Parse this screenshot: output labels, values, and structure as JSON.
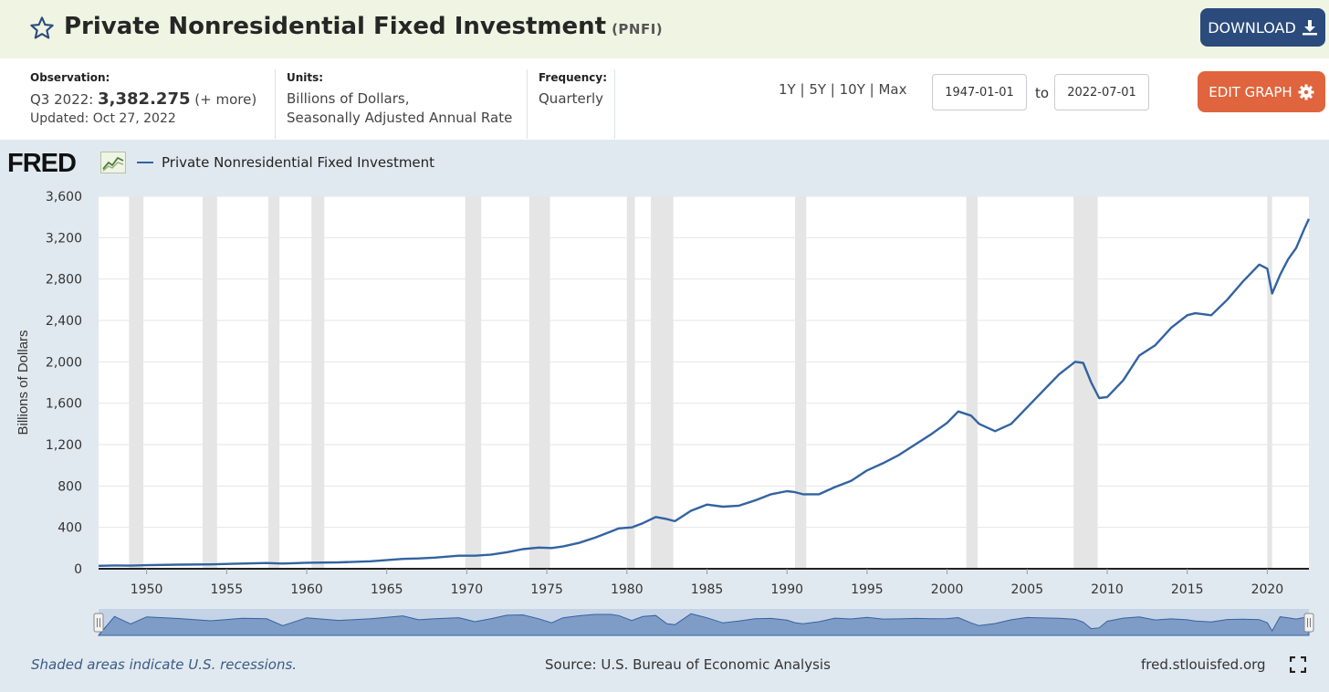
{
  "header": {
    "title": "Private Nonresidential Fixed Investment",
    "series_id": "(PNFI)",
    "download_label": "DOWNLOAD"
  },
  "info": {
    "observation_label": "Observation:",
    "observation_period": "Q3 2022:",
    "observation_value": "3,382.275",
    "observation_more": "(+ more)",
    "updated": "Updated: Oct 27, 2022",
    "units_label": "Units:",
    "units_line1": "Billions of Dollars,",
    "units_line2": "Seasonally Adjusted Annual Rate",
    "frequency_label": "Frequency:",
    "frequency_value": "Quarterly"
  },
  "range_buttons": [
    "1Y",
    "5Y",
    "10Y",
    "Max"
  ],
  "date_from": "1947-01-01",
  "date_to": "2022-07-01",
  "to_label": "to",
  "edit_graph_label": "EDIT GRAPH",
  "fred_logo_text": "FRED",
  "footer": {
    "recession_note": "Shaded areas indicate U.S. recessions.",
    "source": "Source: U.S. Bureau of Economic Analysis",
    "site": "fred.stlouisfed.org"
  },
  "colors": {
    "line": "#3263a1",
    "recession": "#e5e5e5",
    "plot_bg": "#ffffff",
    "chart_bg": "#e1e9f0",
    "download_bg": "#2a4b7c",
    "edit_bg": "#e0643d"
  },
  "chart_data": {
    "type": "line",
    "ylabel": "Billions of Dollars",
    "xlim": [
      1947.0,
      2022.6
    ],
    "ylim": [
      0,
      3600
    ],
    "y_ticks": [
      0,
      400,
      800,
      1200,
      1600,
      2000,
      2400,
      2800,
      3200,
      3600
    ],
    "x_ticks": [
      1950,
      1955,
      1960,
      1965,
      1970,
      1975,
      1980,
      1985,
      1990,
      1995,
      2000,
      2005,
      2010,
      2015,
      2020
    ],
    "grid": true,
    "legend_position": "top-left",
    "recessions": [
      [
        1948.9,
        1949.8
      ],
      [
        1953.5,
        1954.4
      ],
      [
        1957.6,
        1958.3
      ],
      [
        1960.3,
        1961.1
      ],
      [
        1969.9,
        1970.9
      ],
      [
        1973.9,
        1975.2
      ],
      [
        1980.0,
        1980.5
      ],
      [
        1981.5,
        1982.9
      ],
      [
        1990.5,
        1991.2
      ],
      [
        2001.2,
        2001.9
      ],
      [
        2007.9,
        2009.4
      ],
      [
        2020.0,
        2020.3
      ]
    ],
    "series": [
      {
        "name": "Private Nonresidential Fixed Investment",
        "x": [
          1947.0,
          1948.0,
          1949.0,
          1950.0,
          1952.0,
          1954.0,
          1956.0,
          1957.5,
          1958.5,
          1960.0,
          1962.0,
          1964.0,
          1966.0,
          1967.0,
          1968.0,
          1969.5,
          1970.5,
          1971.5,
          1972.5,
          1973.5,
          1974.5,
          1975.3,
          1976.0,
          1977.0,
          1978.0,
          1979.0,
          1979.5,
          1980.3,
          1981.0,
          1981.8,
          1982.5,
          1983.0,
          1984.0,
          1985.0,
          1986.0,
          1987.0,
          1988.0,
          1989.0,
          1990.0,
          1990.5,
          1991.0,
          1992.0,
          1993.0,
          1994.0,
          1995.0,
          1996.0,
          1997.0,
          1998.0,
          1999.0,
          2000.0,
          2000.7,
          2001.5,
          2002.0,
          2003.0,
          2004.0,
          2005.0,
          2006.0,
          2007.0,
          2008.0,
          2008.5,
          2009.0,
          2009.5,
          2010.0,
          2011.0,
          2012.0,
          2013.0,
          2014.0,
          2015.0,
          2015.5,
          2016.5,
          2017.5,
          2018.5,
          2019.5,
          2020.0,
          2020.3,
          2020.8,
          2021.3,
          2021.8,
          2022.3,
          2022.6
        ],
        "y": [
          28,
          32,
          30,
          34,
          40,
          42,
          50,
          56,
          50,
          58,
          62,
          72,
          95,
          100,
          108,
          126,
          126,
          136,
          160,
          190,
          205,
          200,
          215,
          250,
          300,
          360,
          390,
          400,
          440,
          500,
          480,
          460,
          560,
          620,
          600,
          610,
          660,
          720,
          750,
          740,
          720,
          720,
          790,
          850,
          950,
          1020,
          1100,
          1200,
          1300,
          1410,
          1520,
          1480,
          1400,
          1330,
          1400,
          1560,
          1720,
          1880,
          2000,
          1990,
          1800,
          1650,
          1660,
          1820,
          2060,
          2160,
          2330,
          2450,
          2470,
          2450,
          2600,
          2780,
          2940,
          2900,
          2660,
          2840,
          2990,
          3100,
          3280,
          3382
        ]
      }
    ]
  }
}
